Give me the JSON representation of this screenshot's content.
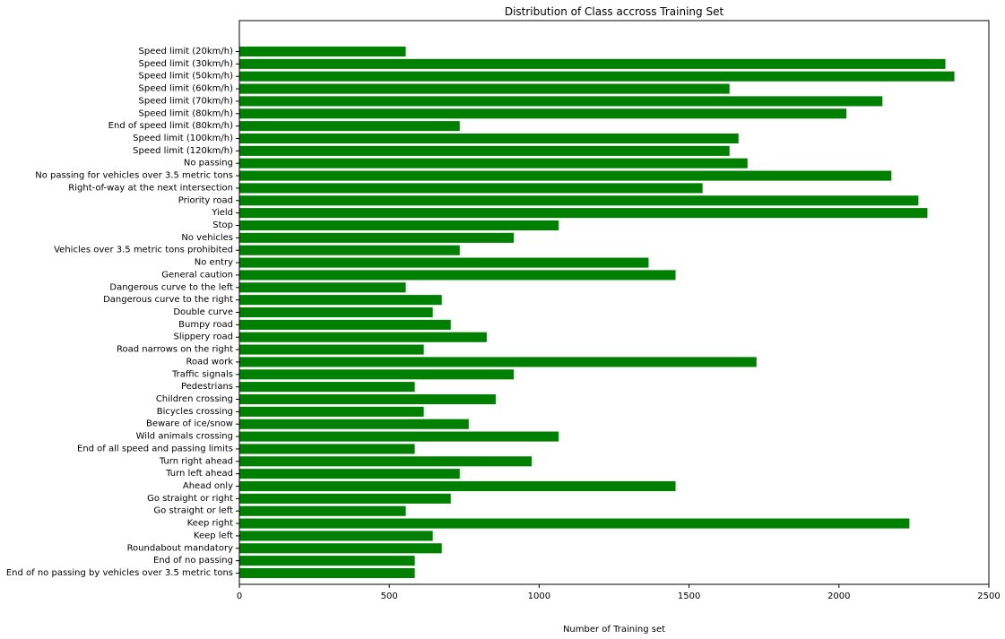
{
  "chart_data": {
    "type": "bar",
    "orientation": "horizontal",
    "title": "Distribution of Class accross Training Set",
    "xlabel": "Number of Training set",
    "ylabel": "",
    "xlim": [
      0,
      2500
    ],
    "xticks": [
      "0",
      "500",
      "1000",
      "1500",
      "2000",
      "2500"
    ],
    "grid": false,
    "bar_color": "#008000",
    "categories": [
      "Speed limit (20km/h)",
      "Speed limit (30km/h)",
      "Speed limit (50km/h)",
      "Speed limit (60km/h)",
      "Speed limit (70km/h)",
      "Speed limit (80km/h)",
      "End of speed limit (80km/h)",
      "Speed limit (100km/h)",
      "Speed limit (120km/h)",
      "No passing",
      "No passing for vehicles over 3.5 metric tons",
      "Right-of-way at the next intersection",
      "Priority road",
      "Yield",
      "Stop",
      "No vehicles",
      "Vehicles over 3.5 metric tons prohibited",
      "No entry",
      "General caution",
      "Dangerous curve to the left",
      "Dangerous curve to the right",
      "Double curve",
      "Bumpy road",
      "Slippery road",
      "Road narrows on the right",
      "Road work",
      "Traffic signals",
      "Pedestrians",
      "Children crossing",
      "Bicycles crossing",
      "Beware of ice/snow",
      "Wild animals crossing",
      "End of all speed and passing limits",
      "Turn right ahead",
      "Turn left ahead",
      "Ahead only",
      "Go straight or right",
      "Go straight or left",
      "Keep right",
      "Keep left",
      "Roundabout mandatory",
      "End of no passing",
      "End of no passing by vehicles over 3.5 metric tons"
    ],
    "values": [
      555,
      2355,
      2385,
      1635,
      2145,
      2025,
      735,
      1665,
      1635,
      1695,
      2175,
      1545,
      2265,
      2295,
      1065,
      915,
      735,
      1365,
      1455,
      555,
      675,
      645,
      705,
      825,
      615,
      1725,
      915,
      585,
      855,
      615,
      765,
      1065,
      585,
      975,
      735,
      1455,
      705,
      555,
      2235,
      645,
      675,
      585,
      585
    ]
  }
}
